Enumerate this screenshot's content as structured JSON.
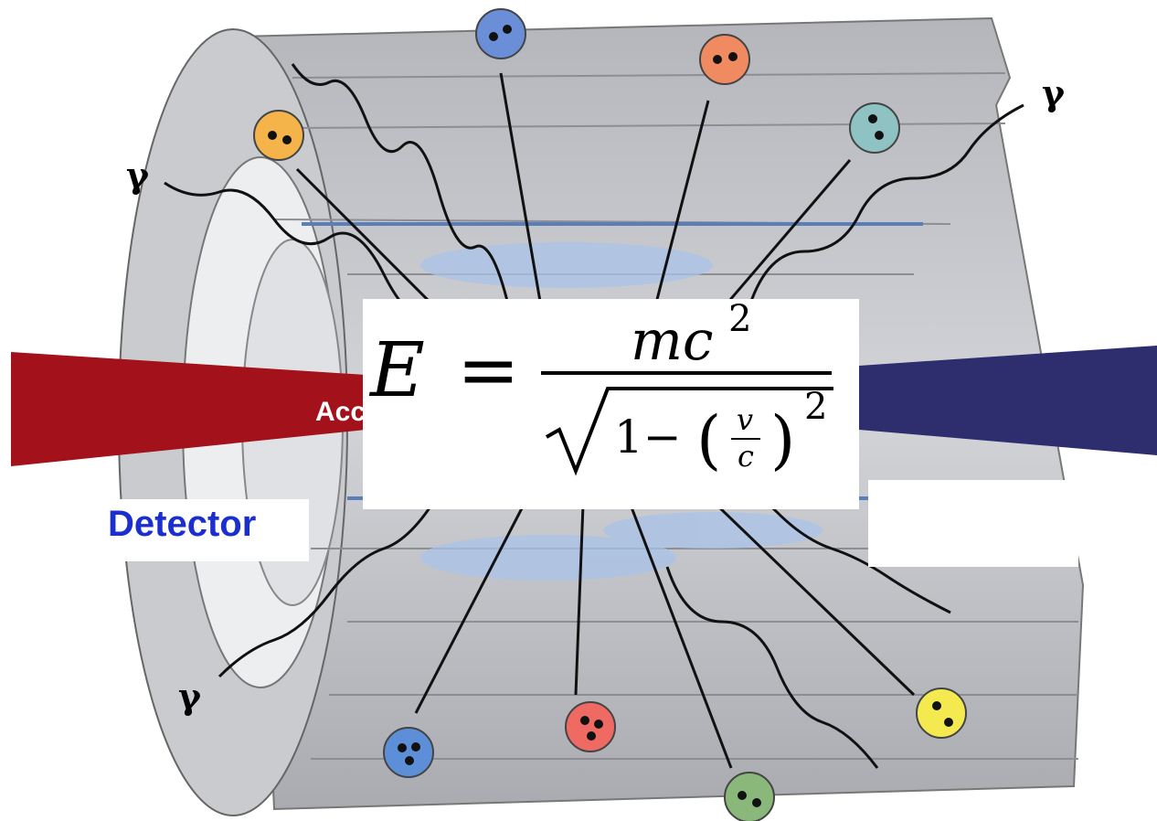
{
  "photon_labels": [
    "γ",
    "γ",
    "γ"
  ],
  "beam_label": "Acc",
  "detector_label": "Detector",
  "equation": {
    "lhs": "E",
    "equals": "=",
    "numerator": {
      "base": "mc",
      "exponent": "2"
    },
    "denominator": {
      "one_minus": "1−",
      "open_paren": "(",
      "fraction": {
        "numerator": "v",
        "denominator": "c"
      },
      "close_paren": ")",
      "exponent": "2"
    }
  }
}
